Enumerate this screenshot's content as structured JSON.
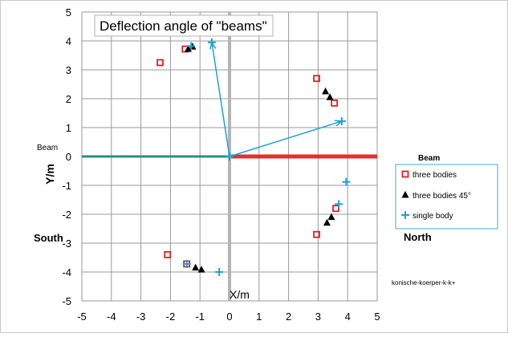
{
  "chart_data": {
    "type": "scatter",
    "title": "Deflection angle of \"beams\"",
    "xlabel": "X/m",
    "ylabel": "Y/m",
    "xlim": [
      -5,
      5
    ],
    "ylim": [
      -5,
      5
    ],
    "x_ticks": [
      -5,
      -4,
      -3,
      -2,
      -1,
      0,
      1,
      2,
      3,
      4,
      5
    ],
    "y_ticks": [
      -5,
      -4,
      -3,
      -2,
      -1,
      0,
      1,
      2,
      3,
      4,
      5
    ],
    "grid": true,
    "legend_position": "right",
    "legend_title": "Beam",
    "annotations": {
      "beam_left": "Beam",
      "south": "South",
      "north": "North",
      "source": "konische-koerper-k-k+"
    },
    "beams": [
      {
        "from": [
          -5,
          0
        ],
        "to": [
          0,
          0
        ],
        "color": "#2e8b8b"
      },
      {
        "from": [
          0,
          0
        ],
        "to": [
          5,
          0
        ],
        "color": "#e03030"
      }
    ],
    "series": [
      {
        "name": "three bodies",
        "marker": "square",
        "color": "#e02020",
        "points": [
          [
            -2.35,
            3.25
          ],
          [
            -1.5,
            3.72
          ],
          [
            2.95,
            2.7
          ],
          [
            3.55,
            1.85
          ],
          [
            3.6,
            -1.8
          ],
          [
            2.95,
            -2.7
          ],
          [
            -2.1,
            -3.4
          ],
          [
            -1.45,
            -3.72
          ]
        ]
      },
      {
        "name": "three bodies 45°",
        "marker": "triangle",
        "color": "#000000",
        "points": [
          [
            -1.4,
            3.72
          ],
          [
            -1.25,
            3.8
          ],
          [
            3.25,
            2.25
          ],
          [
            3.4,
            2.05
          ],
          [
            3.45,
            -2.1
          ],
          [
            3.3,
            -2.3
          ],
          [
            -1.15,
            -3.85
          ],
          [
            -0.95,
            -3.92
          ]
        ]
      },
      {
        "name": "single body",
        "marker": "plus",
        "color": "#1aa3d9",
        "points": [
          [
            -1.3,
            3.82
          ],
          [
            -0.6,
            3.95
          ],
          [
            3.8,
            1.22
          ],
          [
            3.95,
            -0.88
          ],
          [
            3.7,
            -1.65
          ],
          [
            -0.35,
            -4.0
          ],
          [
            -1.45,
            -3.72
          ],
          [
            0.0,
            0.0
          ]
        ]
      }
    ],
    "arrows": [
      {
        "from": [
          0,
          0
        ],
        "to": [
          -0.6,
          3.95
        ],
        "color": "#1aa3d9"
      },
      {
        "from": [
          0,
          0
        ],
        "to": [
          3.8,
          1.22
        ],
        "color": "#1aa3d9"
      }
    ]
  }
}
